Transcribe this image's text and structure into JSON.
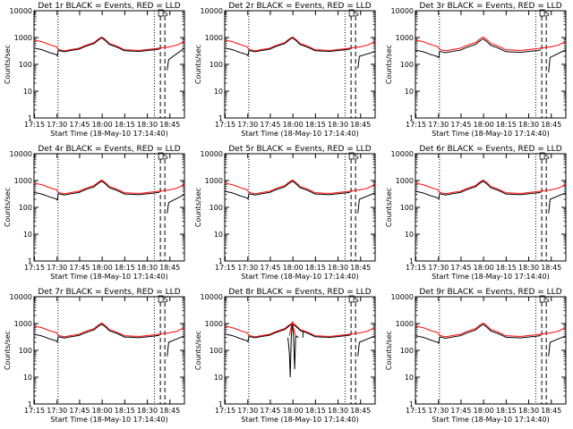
{
  "panels": [
    {
      "title": "Det 1r BLACK = Events, RED = LLD",
      "ylabel": "Counts/sec",
      "xlabel": "Start Time (18-May-10 17:14:40)",
      "label_s": "S",
      "label_ds": "D"
    },
    {
      "title": "Det 2r BLACK = Events, RED = LLD",
      "ylabel": "Counts/sec",
      "xlabel": "Start Time (18-May-10 17:14:40)",
      "label_s": "S",
      "label_ds": "D"
    },
    {
      "title": "Det 3r BLACK = Events, RED = LLD",
      "ylabel": "Counts/sec",
      "xlabel": "Start Time (18-May-10 17:14:40)",
      "label_s": "S",
      "label_ds": "D"
    },
    {
      "title": "Det 4r BLACK = Events, RED = LLD",
      "ylabel": "Counts/sec",
      "xlabel": "Start Time (18-May-10 17:14:40)",
      "label_s": "S",
      "label_ds": "D"
    },
    {
      "title": "Det 5r BLACK = Events, RED = LLD",
      "ylabel": "Counts/sec",
      "xlabel": "Start Time (18-May-10 17:14:40)",
      "label_s": "S",
      "label_ds": "D"
    },
    {
      "title": "Det 6r BLACK = Events, RED = LLD",
      "ylabel": "Counts/sec",
      "xlabel": "Start Time (18-May-10 17:14:40)",
      "label_s": "S",
      "label_ds": "D"
    },
    {
      "title": "Det 7r BLACK = Events, RED = LLD",
      "ylabel": "Counts/sec",
      "xlabel": "Start Time (18-May-10 17:14:40)",
      "label_s": "S",
      "label_ds": "D"
    },
    {
      "title": "Det 8r BLACK = Events, RED = LLD",
      "ylabel": "Counts/sec",
      "xlabel": "Start Time (18-May-10 17:14:40)",
      "label_s": "S",
      "label_ds": "D"
    },
    {
      "title": "Det 9r BLACK = Events, RED = LLD",
      "ylabel": "Counts/sec",
      "xlabel": "Start Time (18-May-10 17:14:40)",
      "label_s": "S",
      "label_ds": "D"
    }
  ],
  "chart_data": {
    "type": "line",
    "x_tick_labels": [
      "17:15",
      "17:30",
      "17:45",
      "18:00",
      "18:15",
      "18:30",
      "18:45"
    ],
    "x_ticks_min": [
      0.33,
      15.33,
      30.33,
      45.33,
      60.33,
      75.33,
      90.33
    ],
    "xlim_min": [
      0,
      100
    ],
    "y_scale": "log",
    "ylim": [
      1,
      10000
    ],
    "y_tick_labels": [
      "1",
      "10",
      "100",
      "1000",
      "10000"
    ],
    "y_ticks": [
      1,
      10,
      100,
      1000,
      10000
    ],
    "colors": {
      "events": "#000000",
      "lld": "#ff0000"
    },
    "dotted_markers_min": [
      16,
      80
    ],
    "dashed_markers_min": [
      84,
      87
    ],
    "series": [
      {
        "name": "BLACK = Events",
        "key": "events"
      },
      {
        "name": "RED = LLD",
        "key": "lld"
      }
    ],
    "base_x_min": [
      0,
      5,
      10,
      15,
      16,
      20,
      30,
      40,
      45,
      50,
      60,
      70,
      80,
      90,
      95,
      100
    ],
    "red_base": [
      800,
      700,
      550,
      450,
      360,
      320,
      400,
      650,
      1050,
      600,
      350,
      330,
      380,
      450,
      520,
      700
    ],
    "panels": [
      {
        "events_gap_scale": 0.55,
        "events_after_spike": [
          60,
          150,
          400
        ],
        "red_scale": 1.0,
        "black_scale": 0.92,
        "glitch": false
      },
      {
        "events_gap_scale": 0.55,
        "events_after_spike": [
          70,
          200,
          300
        ],
        "red_scale": 1.0,
        "black_scale": 0.92,
        "glitch": false
      },
      {
        "events_gap_scale": 0.5,
        "events_after_spike": [
          50,
          180,
          350
        ],
        "red_scale": 1.0,
        "black_scale": 0.85,
        "glitch": false
      },
      {
        "events_gap_scale": 0.5,
        "events_after_spike": [
          60,
          150,
          300
        ],
        "red_scale": 1.0,
        "black_scale": 0.9,
        "glitch": false
      },
      {
        "events_gap_scale": 0.55,
        "events_after_spike": [
          60,
          200,
          350
        ],
        "red_scale": 1.0,
        "black_scale": 0.9,
        "glitch": false
      },
      {
        "events_gap_scale": 0.55,
        "events_after_spike": [
          60,
          200,
          350
        ],
        "red_scale": 1.0,
        "black_scale": 0.9,
        "glitch": false
      },
      {
        "events_gap_scale": 0.55,
        "events_after_spike": [
          60,
          200,
          350
        ],
        "red_scale": 1.0,
        "black_scale": 0.9,
        "glitch": false
      },
      {
        "events_gap_scale": 0.55,
        "events_after_spike": [
          60,
          200,
          350
        ],
        "red_scale": 1.0,
        "black_scale": 0.92,
        "glitch": true
      },
      {
        "events_gap_scale": 0.5,
        "events_after_spike": [
          60,
          200,
          350
        ],
        "red_scale": 1.0,
        "black_scale": 0.88,
        "glitch": false
      }
    ]
  }
}
